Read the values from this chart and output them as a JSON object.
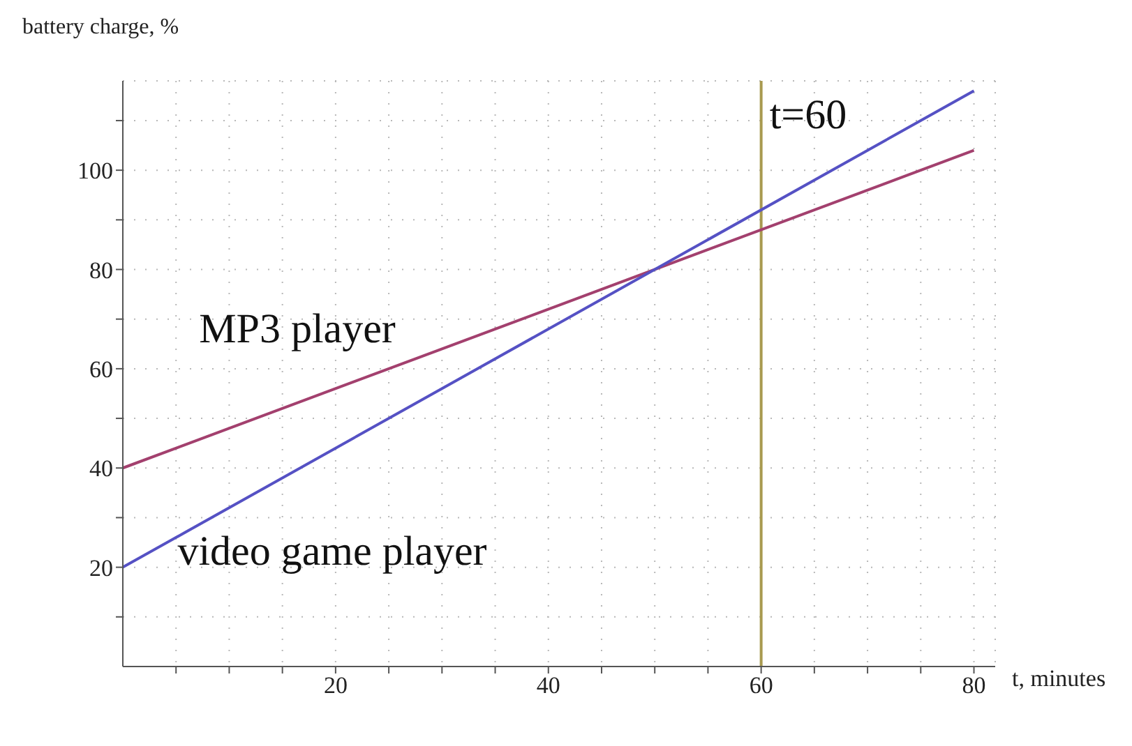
{
  "chart_data": {
    "type": "line",
    "xlabel": "t, minutes",
    "ylabel": "battery charge, %",
    "x": [
      0,
      80
    ],
    "series": [
      {
        "name": "MP3 player",
        "color": "#a3406e",
        "values": [
          40,
          104
        ]
      },
      {
        "name": "video game player",
        "color": "#5551c4",
        "values": [
          20,
          116
        ]
      }
    ],
    "xlim": [
      0,
      82
    ],
    "ylim": [
      0,
      118
    ],
    "xticks": [
      {
        "value": 5,
        "label": null
      },
      {
        "value": 10,
        "label": null
      },
      {
        "value": 15,
        "label": null
      },
      20,
      {
        "value": 25,
        "label": null
      },
      {
        "value": 30,
        "label": null
      },
      {
        "value": 35,
        "label": null
      },
      40,
      {
        "value": 45,
        "label": null
      },
      {
        "value": 50,
        "label": null
      },
      {
        "value": 55,
        "label": null
      },
      60,
      {
        "value": 65,
        "label": null
      },
      {
        "value": 70,
        "label": null
      },
      {
        "value": 75,
        "label": null
      },
      80
    ],
    "yticks": [
      {
        "value": 10,
        "label": null
      },
      20,
      {
        "value": 30,
        "label": null
      },
      40,
      {
        "value": 50,
        "label": null
      },
      60,
      {
        "value": 70,
        "label": null
      },
      80,
      {
        "value": 90,
        "label": null
      },
      100,
      {
        "value": 110,
        "label": null
      }
    ],
    "ref_lines": [
      {
        "axis": "x",
        "value": 60,
        "label": "t=60",
        "color": "#a89a50"
      }
    ],
    "grid": true,
    "marker": "none",
    "line_style": "solid"
  }
}
